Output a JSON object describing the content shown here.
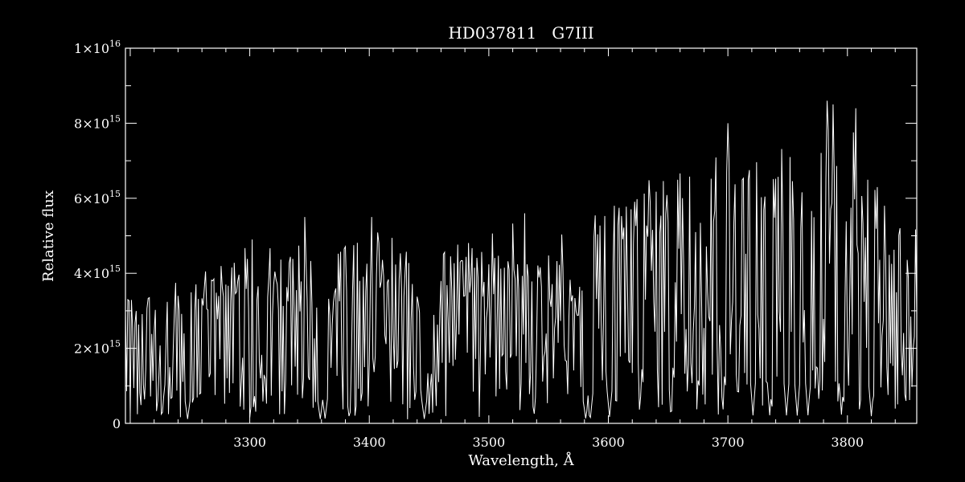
{
  "chart_data": {
    "type": "line",
    "title": "HD037811   G7III",
    "xlabel": "Wavelength, Å",
    "ylabel": "Relative flux",
    "xlim": [
      3196,
      3858
    ],
    "ylim": [
      0,
      1e+16
    ],
    "grid": false,
    "line_color": "#ffffff",
    "background_color": "#000000",
    "x_ticks": [
      {
        "value": 3300,
        "label": "3300"
      },
      {
        "value": 3400,
        "label": "3400"
      },
      {
        "value": 3500,
        "label": "3500"
      },
      {
        "value": 3600,
        "label": "3600"
      },
      {
        "value": 3700,
        "label": "3700"
      },
      {
        "value": 3800,
        "label": "3800"
      }
    ],
    "y_ticks": [
      {
        "value": 0,
        "mantissa": "0",
        "exponent": ""
      },
      {
        "value": 2000000000000000.0,
        "mantissa": "2×10",
        "exponent": "15"
      },
      {
        "value": 4000000000000000.0,
        "mantissa": "4×10",
        "exponent": "15"
      },
      {
        "value": 6000000000000000.0,
        "mantissa": "6×10",
        "exponent": "15"
      },
      {
        "value": 8000000000000000.0,
        "mantissa": "8×10",
        "exponent": "15"
      },
      {
        "value": 1e+16,
        "mantissa": "1×10",
        "exponent": "16"
      }
    ],
    "series": [
      {
        "envelope_x": [
          3196,
          3210,
          3225,
          3240,
          3255,
          3270,
          3285,
          3300,
          3315,
          3330,
          3345,
          3358,
          3362,
          3375,
          3390,
          3405,
          3420,
          3435,
          3445,
          3460,
          3475,
          3490,
          3505,
          3520,
          3535,
          3550,
          3565,
          3578,
          3584,
          3595,
          3610,
          3625,
          3640,
          3655,
          3670,
          3685,
          3700,
          3715,
          3730,
          3745,
          3760,
          3775,
          3790,
          3805,
          3820,
          3835,
          3850,
          3858
        ],
        "envelope_flux": [
          3300000000000000.0,
          3400000000000000.0,
          3000000000000000.0,
          3700000000000000.0,
          4100000000000000.0,
          4200000000000000.0,
          4400000000000000.0,
          4800000000000000.0,
          4900000000000000.0,
          4800000000000000.0,
          4600000000000000.0,
          3800000000000000.0,
          4300000000000000.0,
          4500000000000000.0,
          4700000000000000.0,
          5000000000000000.0,
          4800000000000000.0,
          4500000000000000.0,
          3900000000000000.0,
          4400000000000000.0,
          4600000000000000.0,
          4800000000000000.0,
          5000000000000000.0,
          5200000000000000.0,
          5100000000000000.0,
          5000000000000000.0,
          4800000000000000.0,
          3600000000000000.0,
          5200000000000000.0,
          5600000000000000.0,
          5900000000000000.0,
          6300000000000000.0,
          6700000000000000.0,
          6900000000000000.0,
          7000000000000000.0,
          7100000000000000.0,
          7200000000000000.0,
          7000000000000000.0,
          7200000000000000.0,
          7100000000000000.0,
          6900000000000000.0,
          7500000000000000.0,
          7900000000000000.0,
          7700000000000000.0,
          6400000000000000.0,
          5600000000000000.0,
          5200000000000000.0,
          5000000000000000.0
        ],
        "deep_lines_x": [
          3248,
          3302,
          3359,
          3363,
          3446,
          3581,
          3585,
          3601,
          3721,
          3735,
          3749,
          3758,
          3767,
          3795,
          3820
        ],
        "peaks_x": [
          3302,
          3346,
          3402,
          3530,
          3700,
          3783,
          3788,
          3807
        ],
        "peaks_flux": [
          4900000000000000.0,
          5500000000000000.0,
          5500000000000000.0,
          5600000000000000.0,
          8000000000000000.0,
          8600000000000000.0,
          8500000000000000.0,
          8400000000000000.0
        ],
        "resolution": 1.0
      }
    ]
  }
}
